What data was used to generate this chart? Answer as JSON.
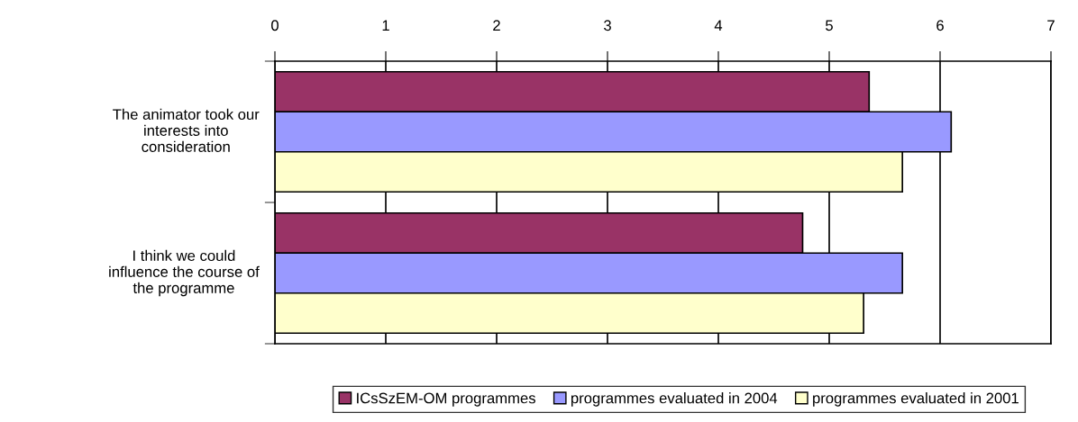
{
  "chart_data": {
    "type": "bar",
    "orientation": "horizontal",
    "categories": [
      "The animator took our interests into consideration",
      "I think we could influence the course of the programme"
    ],
    "series": [
      {
        "name": "ICsSzEM-OM programmes",
        "color": "#993366",
        "values": [
          5.36,
          4.76
        ]
      },
      {
        "name": "programmes evaluated in 2004",
        "color": "#9999ff",
        "values": [
          6.1,
          5.66
        ]
      },
      {
        "name": "programmes evaluated in 2001",
        "color": "#ffffcc",
        "values": [
          5.66,
          5.31
        ]
      }
    ],
    "xlim": [
      0,
      7
    ],
    "xticks": [
      0,
      1,
      2,
      3,
      4,
      5,
      6,
      7
    ],
    "grid": "x",
    "legend": "bottom"
  }
}
